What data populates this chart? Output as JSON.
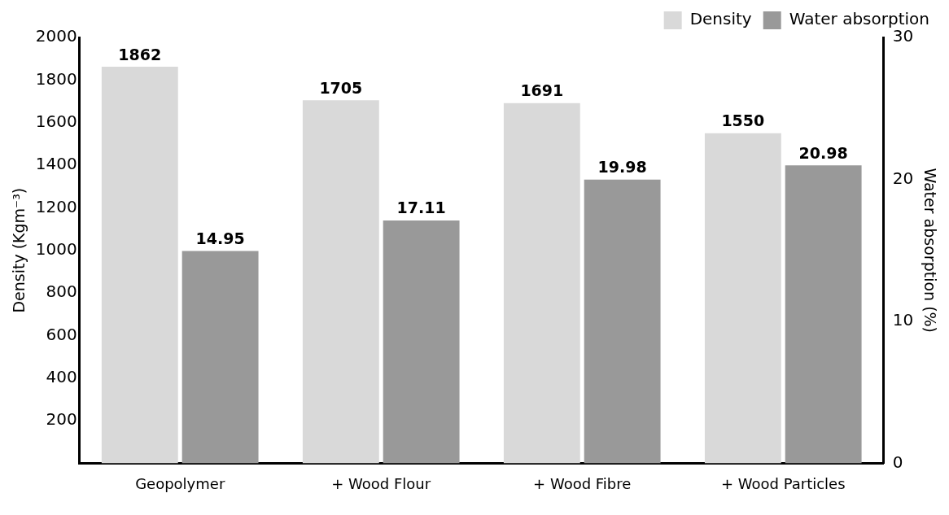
{
  "chart_data": {
    "type": "bar",
    "categories": [
      "Geopolymer",
      "+ Wood Flour",
      "+ Wood Fibre",
      "+ Wood Particles"
    ],
    "ylabel": "Density (Kgm⁻³)",
    "y2label": "Water absorption (%)",
    "series": [
      {
        "name": "Density",
        "color": "#d9d9d9",
        "values": [
          1862,
          1705,
          1691,
          1550
        ]
      },
      {
        "name": "Water absorption",
        "color": "#999999",
        "values": [
          14.95,
          17.11,
          19.98,
          20.98
        ],
        "axis": "y2"
      }
    ],
    "value_labels": [
      [
        "1862",
        "1705",
        "1691",
        "1550"
      ],
      [
        "14.95",
        "17.11",
        "19.98",
        "20.98"
      ]
    ],
    "ylim": [
      0,
      2000
    ],
    "yticks": [
      200,
      400,
      600,
      800,
      1000,
      1200,
      1400,
      1600,
      1800,
      2000
    ],
    "y2lim": [
      0,
      30
    ],
    "y2ticks": [
      0,
      10,
      20,
      30
    ],
    "grid": false,
    "legend": "top right"
  }
}
